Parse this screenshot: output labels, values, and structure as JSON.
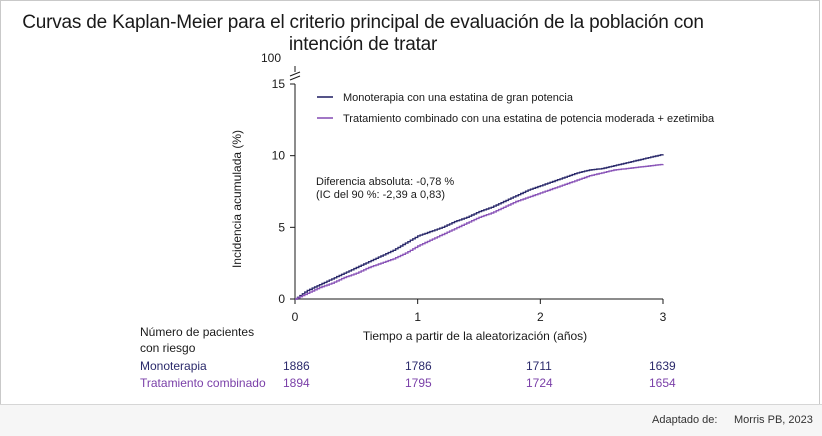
{
  "chart_data": {
    "type": "line",
    "title": "Curvas de Kaplan-Meier para el criterio principal de evaluación de la población con intención de tratar",
    "xlabel": "Tiempo a partir de la aleatorización (años)",
    "ylabel": "Incidencia acumulada (%)",
    "xlim": [
      0,
      3
    ],
    "ylim": [
      0,
      15
    ],
    "y_break_label": "100",
    "x_ticks": [
      "0",
      "1",
      "2",
      "3"
    ],
    "y_ticks": [
      "0",
      "5",
      "10",
      "15"
    ],
    "legend_position": "top-right",
    "grid": false,
    "series": [
      {
        "name": "Monoterapia con una estatina de gran potencia",
        "color": "#2b2a6b",
        "points": [
          [
            0,
            0
          ],
          [
            0.1,
            0.6
          ],
          [
            0.2,
            1.0
          ],
          [
            0.3,
            1.4
          ],
          [
            0.4,
            1.8
          ],
          [
            0.5,
            2.2
          ],
          [
            0.6,
            2.6
          ],
          [
            0.7,
            3.0
          ],
          [
            0.8,
            3.4
          ],
          [
            0.9,
            3.9
          ],
          [
            1.0,
            4.4
          ],
          [
            1.1,
            4.7
          ],
          [
            1.2,
            5.0
          ],
          [
            1.3,
            5.4
          ],
          [
            1.4,
            5.7
          ],
          [
            1.5,
            6.1
          ],
          [
            1.6,
            6.4
          ],
          [
            1.7,
            6.8
          ],
          [
            1.8,
            7.2
          ],
          [
            1.9,
            7.6
          ],
          [
            2.0,
            7.9
          ],
          [
            2.1,
            8.2
          ],
          [
            2.2,
            8.5
          ],
          [
            2.3,
            8.8
          ],
          [
            2.4,
            9.0
          ],
          [
            2.5,
            9.1
          ],
          [
            2.6,
            9.3
          ],
          [
            2.7,
            9.5
          ],
          [
            2.8,
            9.7
          ],
          [
            2.9,
            9.9
          ],
          [
            3.0,
            10.1
          ]
        ]
      },
      {
        "name": "Tratamiento combinado con una estatina de potencia moderada + ezetimiba",
        "color": "#8a55b8",
        "points": [
          [
            0,
            0
          ],
          [
            0.1,
            0.4
          ],
          [
            0.2,
            0.8
          ],
          [
            0.3,
            1.1
          ],
          [
            0.4,
            1.5
          ],
          [
            0.5,
            1.8
          ],
          [
            0.6,
            2.2
          ],
          [
            0.7,
            2.5
          ],
          [
            0.8,
            2.8
          ],
          [
            0.9,
            3.2
          ],
          [
            1.0,
            3.7
          ],
          [
            1.1,
            4.1
          ],
          [
            1.2,
            4.5
          ],
          [
            1.3,
            4.9
          ],
          [
            1.4,
            5.3
          ],
          [
            1.5,
            5.7
          ],
          [
            1.6,
            6.0
          ],
          [
            1.7,
            6.4
          ],
          [
            1.8,
            6.8
          ],
          [
            1.9,
            7.1
          ],
          [
            2.0,
            7.4
          ],
          [
            2.1,
            7.7
          ],
          [
            2.2,
            8.0
          ],
          [
            2.3,
            8.3
          ],
          [
            2.4,
            8.6
          ],
          [
            2.5,
            8.8
          ],
          [
            2.6,
            9.0
          ],
          [
            2.7,
            9.1
          ],
          [
            2.8,
            9.2
          ],
          [
            2.9,
            9.3
          ],
          [
            3.0,
            9.4
          ]
        ]
      }
    ],
    "annotation": [
      "Diferencia absoluta: -0,78 %",
      "(IC del 90 %: -2,39 a 0,83)"
    ]
  },
  "risk_table": {
    "header": [
      "Número de pacientes",
      "con riesgo"
    ],
    "rows": [
      {
        "label": "Monoterapia",
        "color": "#2b2a6b",
        "values": [
          "1886",
          "1786",
          "1711",
          "1639"
        ]
      },
      {
        "label": "Tratamiento combinado",
        "color": "#7a3fa8",
        "values": [
          "1894",
          "1795",
          "1724",
          "1654"
        ]
      }
    ]
  },
  "footer": {
    "label": "Adaptado de:",
    "source": "Morris PB, 2023"
  }
}
